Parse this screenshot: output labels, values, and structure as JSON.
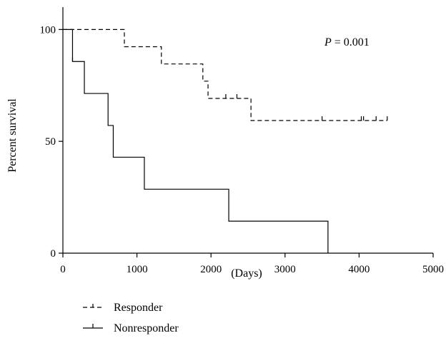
{
  "chart_data": {
    "type": "line",
    "title": "",
    "xlabel": "(Days)",
    "ylabel": "Percent survival",
    "xlim": [
      0,
      5000
    ],
    "ylim": [
      0,
      110
    ],
    "x_ticks": [
      "0",
      "1000",
      "2000",
      "3000",
      "4000",
      "5000"
    ],
    "y_ticks": [
      "0",
      "50",
      "100"
    ],
    "annotation": {
      "italic": "P",
      "text": " = 0.001"
    },
    "grid": false,
    "legend_position": "bottom-left",
    "series": [
      {
        "name": "Responder",
        "style": "dashed",
        "color": "#000000",
        "steps": [
          [
            0,
            100
          ],
          [
            830,
            92.3
          ],
          [
            1330,
            84.6
          ],
          [
            1890,
            76.9
          ],
          [
            1960,
            69.2
          ],
          [
            2540,
            59.3
          ],
          [
            4380,
            59.3
          ]
        ],
        "censored_x": [
          2200,
          2350,
          3500,
          4030,
          4060,
          4230,
          4380
        ]
      },
      {
        "name": "Nonresponder",
        "style": "solid",
        "color": "#000000",
        "steps": [
          [
            0,
            100
          ],
          [
            130,
            85.7
          ],
          [
            290,
            71.4
          ],
          [
            610,
            57.1
          ],
          [
            680,
            42.9
          ],
          [
            1100,
            28.6
          ],
          [
            2240,
            14.3
          ],
          [
            3580,
            0
          ]
        ],
        "censored_x": [
          130
        ]
      }
    ]
  }
}
